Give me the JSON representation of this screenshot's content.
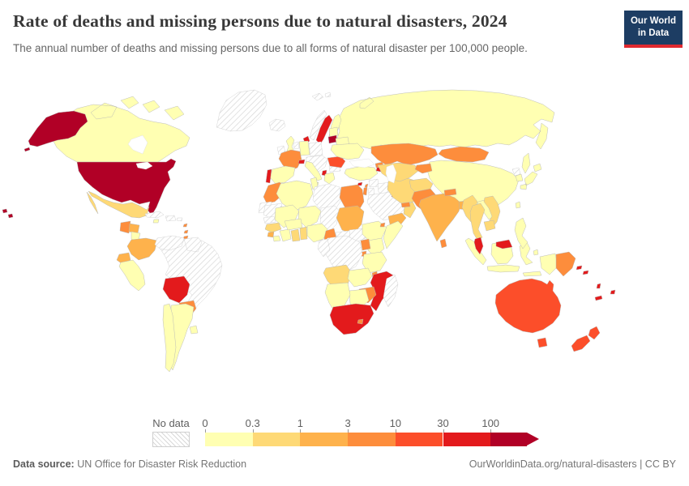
{
  "header": {
    "title": "Rate of deaths and missing persons due to natural disasters, 2024",
    "subtitle": "The annual number of deaths and missing persons due to all forms of natural disaster per 100,000 people.",
    "logo": {
      "line1": "Our World",
      "line2": "in Data",
      "bg_color": "#1d3d63",
      "accent_color": "#e0292f"
    }
  },
  "legend": {
    "no_data_label": "No data",
    "ticks": [
      "0",
      "0.3",
      "1",
      "3",
      "10",
      "30",
      "100"
    ],
    "colors": [
      "#ffffb2",
      "#fed976",
      "#feb24c",
      "#fd8d3c",
      "#fc4e2a",
      "#e31a1c",
      "#b10026"
    ]
  },
  "footer": {
    "source_label": "Data source:",
    "source": "UN Office for Disaster Risk Reduction",
    "credit": "OurWorldinData.org/natural-disasters | CC BY"
  },
  "chart_data": {
    "type": "choropleth_map",
    "title": "Rate of deaths and missing persons due to natural disasters, 2024",
    "unit": "deaths and missing persons per 100,000 people",
    "bins": [
      "No data",
      "0–0.3",
      "0.3–1",
      "1–3",
      "3–10",
      "10–30",
      "30–100",
      "100+"
    ],
    "bin_colors": [
      "hatch",
      "#ffffb2",
      "#fed976",
      "#feb24c",
      "#fd8d3c",
      "#fc4e2a",
      "#e31a1c",
      "#b10026"
    ],
    "countries": [
      {
        "id": "usa",
        "name": "United States",
        "bin": 7
      },
      {
        "id": "lithuania",
        "name": "Lithuania",
        "bin": 7
      },
      {
        "id": "sweden",
        "name": "Sweden",
        "bin": 6
      },
      {
        "id": "denmark",
        "name": "Denmark",
        "bin": 6
      },
      {
        "id": "portugal",
        "name": "Portugal",
        "bin": 6
      },
      {
        "id": "switzerland",
        "name": "Switzerland",
        "bin": 6
      },
      {
        "id": "albania",
        "name": "Albania / North Macedonia",
        "bin": 6
      },
      {
        "id": "bolivia",
        "name": "Bolivia",
        "bin": 6
      },
      {
        "id": "mozambique",
        "name": "Mozambique",
        "bin": 6
      },
      {
        "id": "south-africa",
        "name": "South Africa",
        "bin": 6
      },
      {
        "id": "malaysia",
        "name": "Malaysia",
        "bin": 6
      },
      {
        "id": "armenia",
        "name": "Armenia",
        "bin": 6
      },
      {
        "id": "kuwait",
        "name": "Kuwait",
        "bin": 6
      },
      {
        "id": "cyprus",
        "name": "Cyprus",
        "bin": 6
      },
      {
        "id": "solomon-islands",
        "name": "Solomon Islands",
        "bin": 6
      },
      {
        "id": "vanuatu",
        "name": "Vanuatu",
        "bin": 6
      },
      {
        "id": "new-caledonia",
        "name": "New Caledonia",
        "bin": 6
      },
      {
        "id": "fiji",
        "name": "Fiji",
        "bin": 6
      },
      {
        "id": "romania",
        "name": "Romania",
        "bin": 5
      },
      {
        "id": "australia",
        "name": "Australia",
        "bin": 5
      },
      {
        "id": "new-zealand",
        "name": "New Zealand",
        "bin": 5
      },
      {
        "id": "guatemala",
        "name": "Guatemala",
        "bin": 4
      },
      {
        "id": "panama",
        "name": "Panama",
        "bin": 4
      },
      {
        "id": "lesser-antilles",
        "name": "Lesser Antilles",
        "bin": 4
      },
      {
        "id": "paraguay",
        "name": "Paraguay",
        "bin": 4
      },
      {
        "id": "france",
        "name": "France",
        "bin": 4
      },
      {
        "id": "morocco",
        "name": "Morocco",
        "bin": 4
      },
      {
        "id": "egypt",
        "name": "Egypt",
        "bin": 4
      },
      {
        "id": "cameroon",
        "name": "Cameroon",
        "bin": 4
      },
      {
        "id": "uganda",
        "name": "Uganda",
        "bin": 4
      },
      {
        "id": "rwanda-burundi",
        "name": "Rwanda / Burundi",
        "bin": 4
      },
      {
        "id": "malawi",
        "name": "Malawi",
        "bin": 4
      },
      {
        "id": "zimbabwe",
        "name": "Zimbabwe",
        "bin": 4
      },
      {
        "id": "lesotho",
        "name": "Lesotho",
        "bin": 4
      },
      {
        "id": "djibouti",
        "name": "Djibouti",
        "bin": 4
      },
      {
        "id": "israel",
        "name": "Israel",
        "bin": 4
      },
      {
        "id": "lebanon",
        "name": "Lebanon",
        "bin": 4
      },
      {
        "id": "georgia",
        "name": "Georgia",
        "bin": 4
      },
      {
        "id": "azerbaijan",
        "name": "Azerbaijan",
        "bin": 4
      },
      {
        "id": "kazakhstan",
        "name": "Kazakhstan",
        "bin": 4
      },
      {
        "id": "mongolia",
        "name": "Mongolia",
        "bin": 4
      },
      {
        "id": "kyrgyzstan-tajikistan",
        "name": "Kyrgyzstan / Tajikistan",
        "bin": 4
      },
      {
        "id": "pakistan",
        "name": "Pakistan",
        "bin": 4
      },
      {
        "id": "nepal",
        "name": "Nepal",
        "bin": 4
      },
      {
        "id": "sri-lanka",
        "name": "Sri Lanka",
        "bin": 4
      },
      {
        "id": "moldova",
        "name": "Moldova",
        "bin": 4
      },
      {
        "id": "uae-qatar",
        "name": "United Arab Emirates / Qatar",
        "bin": 4
      },
      {
        "id": "papua-new-guinea",
        "name": "Papua New Guinea",
        "bin": 4
      },
      {
        "id": "honduras",
        "name": "Honduras",
        "bin": 3
      },
      {
        "id": "colombia",
        "name": "Colombia",
        "bin": 3
      },
      {
        "id": "ecuador",
        "name": "Ecuador",
        "bin": 3
      },
      {
        "id": "sierra-leone",
        "name": "Sierra Leone",
        "bin": 3
      },
      {
        "id": "sudan",
        "name": "Sudan",
        "bin": 3
      },
      {
        "id": "india",
        "name": "India",
        "bin": 3
      },
      {
        "id": "bangladesh",
        "name": "Bangladesh",
        "bin": 3
      },
      {
        "id": "yemen",
        "name": "Yemen",
        "bin": 3
      },
      {
        "id": "mexico",
        "name": "Mexico",
        "bin": 2
      },
      {
        "id": "costa-rica",
        "name": "Costa Rica",
        "bin": 2
      },
      {
        "id": "guinea",
        "name": "Guinea",
        "bin": 2
      },
      {
        "id": "ghana",
        "name": "Ghana",
        "bin": 2
      },
      {
        "id": "togo-benin",
        "name": "Togo / Benin",
        "bin": 2
      },
      {
        "id": "angola",
        "name": "Angola",
        "bin": 2
      },
      {
        "id": "iran",
        "name": "Iran",
        "bin": 2
      },
      {
        "id": "turkmenistan-uzbekistan",
        "name": "Turkmenistan / Uzbekistan",
        "bin": 2
      },
      {
        "id": "afghanistan",
        "name": "Afghanistan",
        "bin": 2
      },
      {
        "id": "oman",
        "name": "Oman",
        "bin": 2
      },
      {
        "id": "myanmar",
        "name": "Myanmar",
        "bin": 2
      },
      {
        "id": "thailand",
        "name": "Thailand",
        "bin": 2
      },
      {
        "id": "vietnam",
        "name": "Vietnam",
        "bin": 2
      },
      {
        "id": "cambodia",
        "name": "Cambodia",
        "bin": 2
      },
      {
        "id": "canada",
        "name": "Canada",
        "bin": 1
      },
      {
        "id": "peru",
        "name": "Peru",
        "bin": 1
      },
      {
        "id": "chile",
        "name": "Chile",
        "bin": 1
      },
      {
        "id": "argentina",
        "name": "Argentina",
        "bin": 1
      },
      {
        "id": "uruguay",
        "name": "Uruguay",
        "bin": 1
      },
      {
        "id": "nicaragua",
        "name": "Nicaragua",
        "bin": 1
      },
      {
        "id": "jamaica",
        "name": "Jamaica",
        "bin": 1
      },
      {
        "id": "uk",
        "name": "United Kingdom",
        "bin": 1
      },
      {
        "id": "finland",
        "name": "Finland",
        "bin": 1
      },
      {
        "id": "estonia-latvia",
        "name": "Estonia / Latvia",
        "bin": 1
      },
      {
        "id": "belarus",
        "name": "Belarus",
        "bin": 1
      },
      {
        "id": "germany",
        "name": "Germany",
        "bin": 1
      },
      {
        "id": "spain",
        "name": "Spain",
        "bin": 1
      },
      {
        "id": "italy",
        "name": "Italy",
        "bin": 1
      },
      {
        "id": "greece",
        "name": "Greece",
        "bin": 1
      },
      {
        "id": "ukraine",
        "name": "Ukraine",
        "bin": 1
      },
      {
        "id": "russia",
        "name": "Russia",
        "bin": 1
      },
      {
        "id": "turkey",
        "name": "Turkey",
        "bin": 1
      },
      {
        "id": "china",
        "name": "China",
        "bin": 1
      },
      {
        "id": "algeria",
        "name": "Algeria",
        "bin": 1
      },
      {
        "id": "tunisia",
        "name": "Tunisia",
        "bin": 1
      },
      {
        "id": "mali",
        "name": "Mali",
        "bin": 1
      },
      {
        "id": "niger",
        "name": "Niger",
        "bin": 1
      },
      {
        "id": "nigeria",
        "name": "Nigeria",
        "bin": 1
      },
      {
        "id": "ivory-coast",
        "name": "Côte d'Ivoire",
        "bin": 1
      },
      {
        "id": "liberia",
        "name": "Liberia",
        "bin": 1
      },
      {
        "id": "burkina-faso",
        "name": "Burkina Faso",
        "bin": 1
      },
      {
        "id": "ethiopia",
        "name": "Ethiopia",
        "bin": 1
      },
      {
        "id": "somalia",
        "name": "Somalia",
        "bin": 1
      },
      {
        "id": "kenya",
        "name": "Kenya",
        "bin": 1
      },
      {
        "id": "tanzania",
        "name": "Tanzania",
        "bin": 1
      },
      {
        "id": "zambia",
        "name": "Zambia",
        "bin": 1
      },
      {
        "id": "botswana",
        "name": "Botswana",
        "bin": 1
      },
      {
        "id": "namibia",
        "name": "Namibia",
        "bin": 1
      },
      {
        "id": "laos",
        "name": "Laos",
        "bin": 1
      },
      {
        "id": "indonesia",
        "name": "Indonesia",
        "bin": 1
      },
      {
        "id": "philippines",
        "name": "Philippines",
        "bin": 1
      },
      {
        "id": "taiwan",
        "name": "Taiwan",
        "bin": 1
      },
      {
        "id": "japan",
        "name": "Japan",
        "bin": 1
      },
      {
        "id": "south-korea",
        "name": "South Korea",
        "bin": 1
      },
      {
        "id": "greenland",
        "name": "Greenland",
        "bin": 0
      },
      {
        "id": "iceland",
        "name": "Iceland",
        "bin": 0
      },
      {
        "id": "ireland",
        "name": "Ireland",
        "bin": 0
      },
      {
        "id": "norway",
        "name": "Norway",
        "bin": 0
      },
      {
        "id": "svalbard",
        "name": "Svalbard",
        "bin": 0
      },
      {
        "id": "poland",
        "name": "Poland",
        "bin": 0
      },
      {
        "id": "benelux",
        "name": "Netherlands / Belgium",
        "bin": 0
      },
      {
        "id": "central-europe",
        "name": "Central Europe / Balkans",
        "bin": 0
      },
      {
        "id": "bulgaria",
        "name": "Bulgaria",
        "bin": 0
      },
      {
        "id": "cuba",
        "name": "Cuba",
        "bin": 0
      },
      {
        "id": "hispaniola",
        "name": "Haiti / Dominican Republic",
        "bin": 0
      },
      {
        "id": "puerto-rico",
        "name": "Puerto Rico",
        "bin": 0
      },
      {
        "id": "venezuela",
        "name": "Venezuela",
        "bin": 0
      },
      {
        "id": "guyanas",
        "name": "Guyana / Suriname",
        "bin": 0
      },
      {
        "id": "brazil",
        "name": "Brazil",
        "bin": 0
      },
      {
        "id": "western-sahara",
        "name": "Western Sahara",
        "bin": 0
      },
      {
        "id": "mauritania",
        "name": "Mauritania",
        "bin": 0
      },
      {
        "id": "senegal",
        "name": "Senegal",
        "bin": 0
      },
      {
        "id": "libya",
        "name": "Libya",
        "bin": 0
      },
      {
        "id": "chad",
        "name": "Chad",
        "bin": 0
      },
      {
        "id": "central-african-republic",
        "name": "Central African Republic",
        "bin": 0
      },
      {
        "id": "south-sudan",
        "name": "South Sudan",
        "bin": 0
      },
      {
        "id": "drc",
        "name": "Democratic Republic of Congo",
        "bin": 0
      },
      {
        "id": "gabon-congo",
        "name": "Gabon / Congo",
        "bin": 0
      },
      {
        "id": "madagascar",
        "name": "Madagascar",
        "bin": 0
      },
      {
        "id": "syria",
        "name": "Syria",
        "bin": 0
      },
      {
        "id": "jordan",
        "name": "Jordan",
        "bin": 0
      },
      {
        "id": "iraq",
        "name": "Iraq",
        "bin": 0
      },
      {
        "id": "saudi-arabia",
        "name": "Saudi Arabia",
        "bin": 0
      },
      {
        "id": "north-korea",
        "name": "North Korea",
        "bin": 0
      }
    ]
  }
}
